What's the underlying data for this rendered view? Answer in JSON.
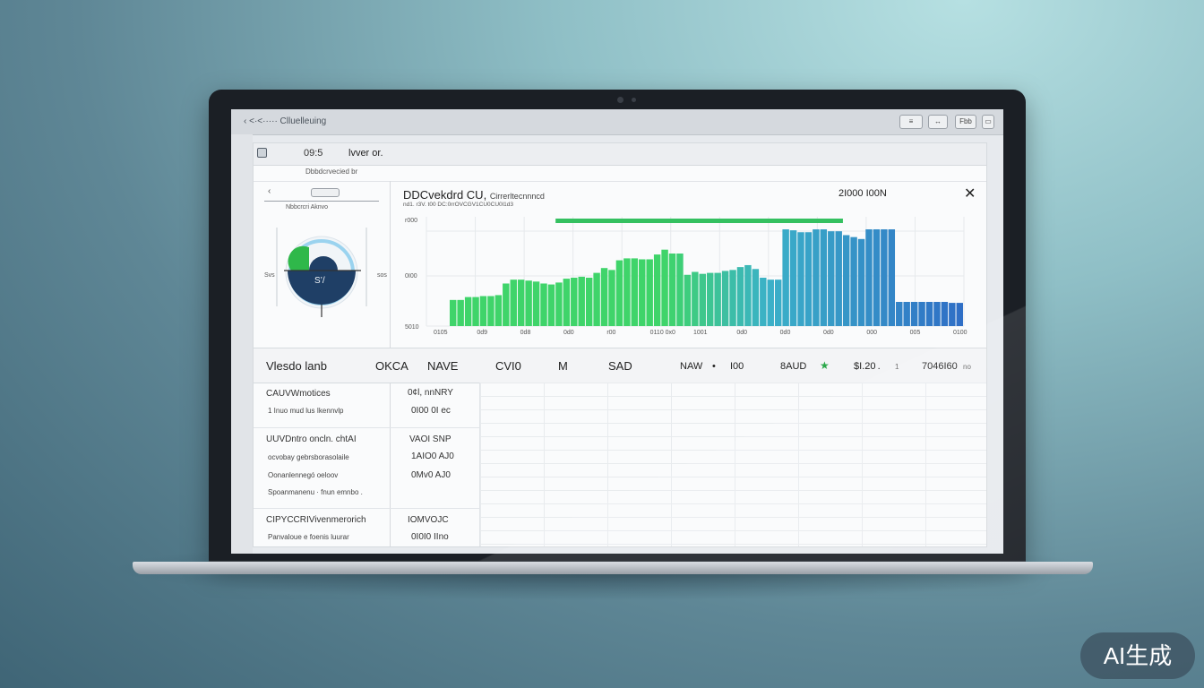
{
  "browser": {
    "title": "‹ <·<····· Clluelleuing",
    "buttons": [
      "≡",
      "↔",
      "Fbb",
      "▭"
    ]
  },
  "app": {
    "title_short": "09:5",
    "title": "lvver or.",
    "subheader": "Dbbdcrvecied br"
  },
  "left_panel": {
    "back": "‹",
    "label": "Nbbcrcri Aknvo",
    "gauge_value": "S’/",
    "gauge_left": "Svs",
    "gauge_right": "sos",
    "colors": {
      "green": "#2fb84a",
      "navy": "#1f3f66",
      "ring": "#9ad3ef"
    }
  },
  "chart_panel": {
    "title": "DDCvekdrd CU,",
    "title_suffix": "Cirrerltecnnncd",
    "subtitle": "nd1. r3V. t00 DC:0rrOVCGV1CU0CU0l1d3",
    "total": "2I000 I00N",
    "close": "✕"
  },
  "chart_data": {
    "type": "bar",
    "y_tick_labels": [
      "r000",
      "0I00",
      "5010"
    ],
    "x_tick_labels": [
      "0105",
      "0d9",
      "0d8",
      "0d0",
      "r00",
      "0110 0x0",
      "1001",
      "0d0",
      "0d0",
      "0d0",
      "000",
      "005",
      "0100"
    ],
    "values": [
      27,
      27,
      30,
      30,
      31,
      31,
      32,
      44,
      48,
      48,
      47,
      46,
      44,
      43,
      45,
      49,
      50,
      51,
      50,
      55,
      60,
      58,
      68,
      70,
      70,
      69,
      69,
      74,
      79,
      75,
      75,
      53,
      56,
      54,
      55,
      55,
      57,
      58,
      61,
      63,
      59,
      50,
      48,
      48,
      100,
      99,
      97,
      97,
      100,
      100,
      98,
      98,
      94,
      92,
      90,
      100,
      100,
      100,
      100,
      25,
      25,
      25,
      25,
      25,
      25,
      25,
      24,
      24
    ],
    "colors": {
      "start": "#3fd46a",
      "mid": "#3bb1c8",
      "end": "#2f6fc6",
      "target": "#34c060"
    },
    "target_line": {
      "start_index": 14,
      "end_index": 52
    }
  },
  "summary": {
    "label": "Vlesdo lanb",
    "c1": "OKCA",
    "c2": "NAVE",
    "c3": "CVI0",
    "c4": "M",
    "c5": "SAD",
    "c6": "NAW",
    "c7": "•",
    "c8": "I00",
    "c9": "8AUD",
    "star": "★",
    "c10": "$I.20 .",
    "c11": "1",
    "c12": "7046I60",
    "c13": "no"
  },
  "table": {
    "rows": [
      {
        "name": "CAUVWmotices",
        "desc": "1 Inuo mud lus Ikennvlp",
        "v1": "0¢l, nnNRY",
        "v2": "0I00 0I ec"
      },
      {
        "name": "UUVDntro oncln. chtAI",
        "desc": "ocvobay gebrsborasolaile",
        "desc2": "Oonanlennegó oeloov",
        "desc3": "Spoanmanenu · fnun emnbo .",
        "v1": "VAOI SNP",
        "v2": "1AIO0 AJ0",
        "v3": "0Mv0 AJ0"
      },
      {
        "name": "CIPYCCRIVivenmerorich",
        "desc": "Panvaloue e foenis luurar",
        "v1": "IOMVOJC",
        "v2": "0I0I0 IIno"
      }
    ]
  },
  "watermark": "AI生成"
}
